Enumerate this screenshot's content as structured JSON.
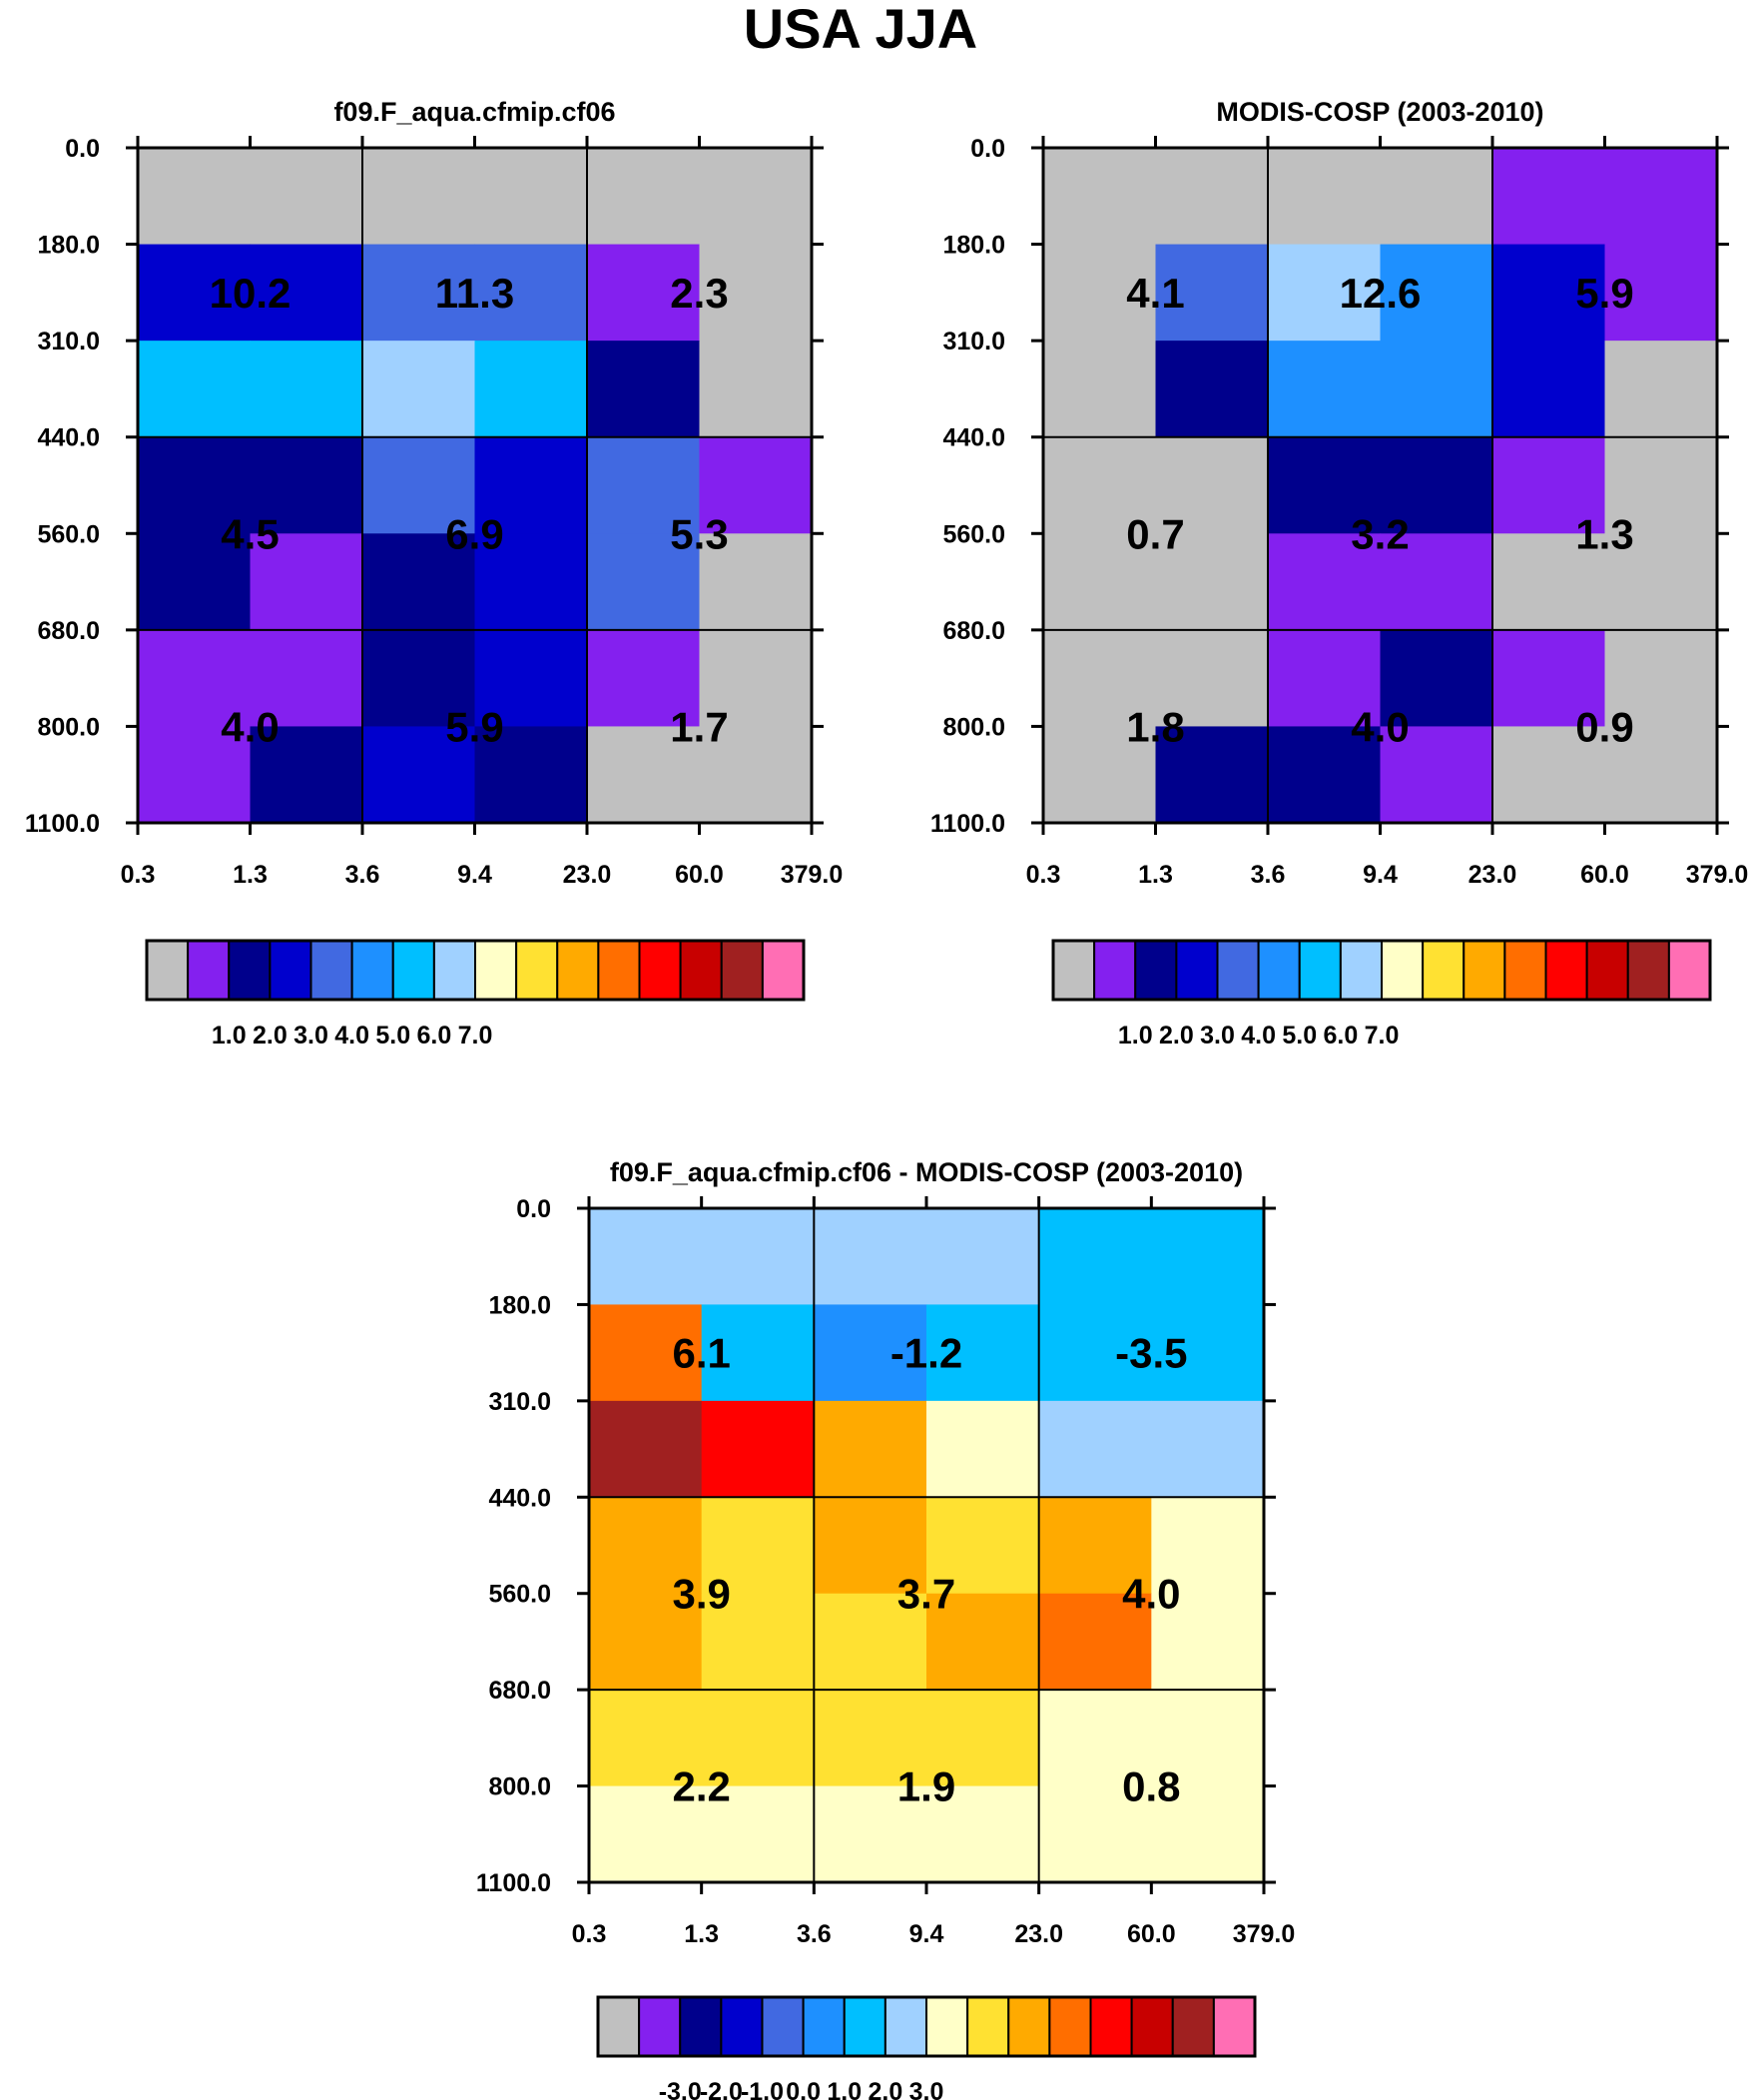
{
  "title": "USA JJA",
  "colorbar_palette": [
    "#c0c0c0",
    "#8420ef",
    "#00008c",
    "#0000cd",
    "#4169e1",
    "#1e90ff",
    "#00bfff",
    "#a0d1ff",
    "#ffffc8",
    "#ffe132",
    "#ffaa00",
    "#ff6e00",
    "#ff0000",
    "#c80000",
    "#a02020",
    "#ff6eb4"
  ],
  "chart_data": [
    {
      "type": "heatmap",
      "id": "model",
      "title": "f09.F_aqua.cfmip.cf06",
      "x_ticks": [
        "0.3",
        "1.3",
        "3.6",
        "9.4",
        "23.0",
        "60.0",
        "379.0"
      ],
      "y_ticks": [
        "0.0",
        "180.0",
        "310.0",
        "440.0",
        "560.0",
        "680.0",
        "800.0",
        "1100.0"
      ],
      "cell_colors": [
        [
          0,
          0,
          0,
          0,
          0,
          0
        ],
        [
          3,
          3,
          4,
          4,
          1,
          0
        ],
        [
          6,
          6,
          7,
          6,
          2,
          0
        ],
        [
          2,
          2,
          4,
          3,
          4,
          1
        ],
        [
          2,
          1,
          2,
          3,
          4,
          0
        ],
        [
          1,
          1,
          2,
          3,
          1,
          0
        ],
        [
          1,
          2,
          3,
          2,
          0,
          0
        ]
      ],
      "labels": [
        [
          "10.2",
          "11.3",
          "2.3"
        ],
        [
          "4.5",
          "6.9",
          "5.3"
        ],
        [
          "4.0",
          "5.9",
          "1.7"
        ]
      ],
      "colorbar_labels": [
        "1.0",
        "2.0",
        "3.0",
        "4.0",
        "5.0",
        "6.0",
        "7.0"
      ]
    },
    {
      "type": "heatmap",
      "id": "obs",
      "title": "MODIS-COSP (2003-2010)",
      "x_ticks": [
        "0.3",
        "1.3",
        "3.6",
        "9.4",
        "23.0",
        "60.0",
        "379.0"
      ],
      "y_ticks": [
        "0.0",
        "180.0",
        "310.0",
        "440.0",
        "560.0",
        "680.0",
        "800.0",
        "1100.0"
      ],
      "cell_colors": [
        [
          0,
          0,
          0,
          0,
          1,
          1
        ],
        [
          0,
          4,
          7,
          5,
          3,
          1
        ],
        [
          0,
          2,
          5,
          5,
          3,
          0
        ],
        [
          0,
          0,
          2,
          2,
          1,
          0
        ],
        [
          0,
          0,
          1,
          1,
          0,
          0
        ],
        [
          0,
          0,
          1,
          2,
          1,
          0
        ],
        [
          0,
          2,
          2,
          1,
          0,
          0
        ]
      ],
      "labels": [
        [
          "4.1",
          "12.6",
          "5.9"
        ],
        [
          "0.7",
          "3.2",
          "1.3"
        ],
        [
          "1.8",
          "4.0",
          "0.9"
        ]
      ],
      "colorbar_labels": [
        "1.0",
        "2.0",
        "3.0",
        "4.0",
        "5.0",
        "6.0",
        "7.0"
      ]
    },
    {
      "type": "heatmap",
      "id": "diff",
      "title": "f09.F_aqua.cfmip.cf06 - MODIS-COSP (2003-2010)",
      "x_ticks": [
        "0.3",
        "1.3",
        "3.6",
        "9.4",
        "23.0",
        "60.0",
        "379.0"
      ],
      "y_ticks": [
        "0.0",
        "180.0",
        "310.0",
        "440.0",
        "560.0",
        "680.0",
        "800.0",
        "1100.0"
      ],
      "cell_colors": [
        [
          7,
          7,
          7,
          7,
          6,
          6
        ],
        [
          11,
          6,
          5,
          6,
          6,
          6
        ],
        [
          14,
          12,
          10,
          8,
          7,
          7
        ],
        [
          10,
          9,
          10,
          9,
          10,
          8
        ],
        [
          10,
          9,
          9,
          10,
          11,
          8
        ],
        [
          9,
          9,
          9,
          9,
          8,
          8
        ],
        [
          8,
          8,
          8,
          8,
          8,
          8
        ]
      ],
      "labels": [
        [
          "6.1",
          "-1.2",
          "-3.5"
        ],
        [
          "3.9",
          "3.7",
          "4.0"
        ],
        [
          "2.2",
          "1.9",
          "0.8"
        ]
      ],
      "colorbar_labels": [
        "-3.0",
        "-2.0",
        "-1.0",
        "0.0",
        "1.0",
        "2.0",
        "3.0"
      ]
    }
  ]
}
